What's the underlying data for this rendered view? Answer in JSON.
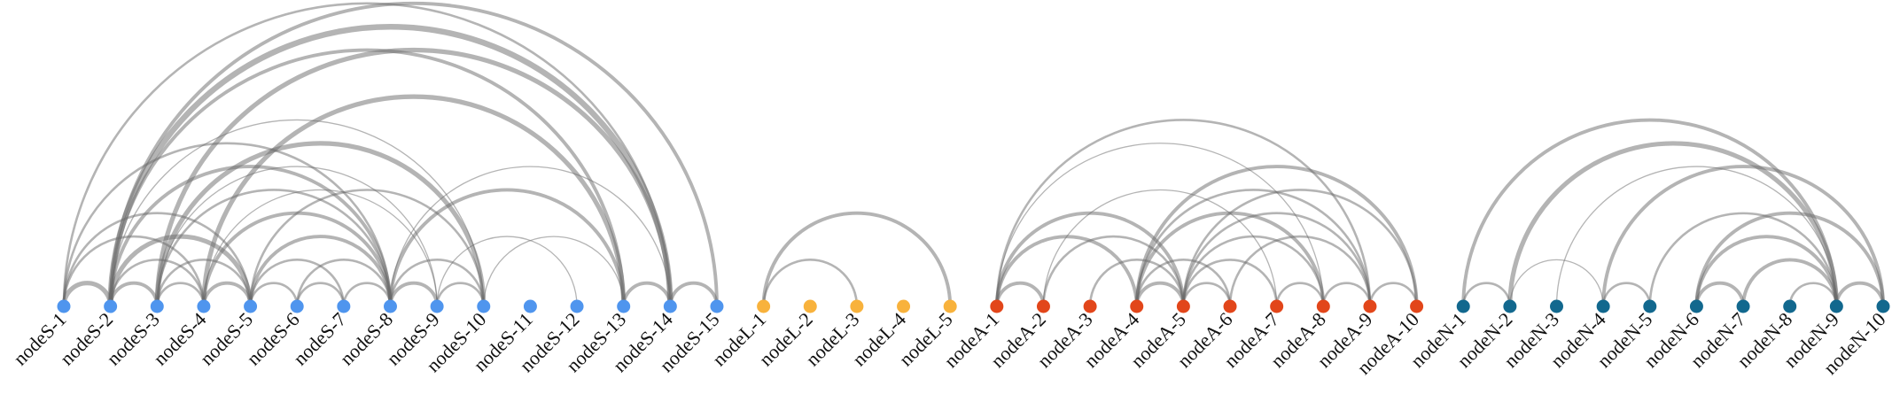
{
  "groups": [
    {
      "color": "#4f95ee",
      "nodes": [
        "nodeS-1",
        "nodeS-2",
        "nodeS-3",
        "nodeS-4",
        "nodeS-5",
        "nodeS-6",
        "nodeS-7",
        "nodeS-8",
        "nodeS-9",
        "nodeS-10",
        "nodeS-11",
        "nodeS-12",
        "nodeS-13",
        "nodeS-14",
        "nodeS-15"
      ]
    },
    {
      "color": "#f8b23c",
      "nodes": [
        "nodeL-1",
        "nodeL-2",
        "nodeL-3",
        "nodeL-4",
        "nodeL-5"
      ]
    },
    {
      "color": "#e2461a",
      "nodes": [
        "nodeA-1",
        "nodeA-2",
        "nodeA-3",
        "nodeA-4",
        "nodeA-5",
        "nodeA-6",
        "nodeA-7",
        "nodeA-8",
        "nodeA-9",
        "nodeA-10"
      ]
    },
    {
      "color": "#12688e",
      "nodes": [
        "nodeN-1",
        "nodeN-2",
        "nodeN-3",
        "nodeN-4",
        "nodeN-5",
        "nodeN-6",
        "nodeN-7",
        "nodeN-8",
        "nodeN-9",
        "nodeN-10"
      ]
    }
  ],
  "links": [
    [
      0,
      1,
      4
    ],
    [
      0,
      3,
      2
    ],
    [
      0,
      4,
      2
    ],
    [
      0,
      7,
      2
    ],
    [
      0,
      13,
      2
    ],
    [
      1,
      2,
      3
    ],
    [
      1,
      3,
      2
    ],
    [
      1,
      4,
      4
    ],
    [
      1,
      7,
      3
    ],
    [
      1,
      9,
      1
    ],
    [
      1,
      12,
      3
    ],
    [
      1,
      13,
      5
    ],
    [
      1,
      14,
      3
    ],
    [
      2,
      3,
      2
    ],
    [
      2,
      4,
      2
    ],
    [
      2,
      7,
      2
    ],
    [
      2,
      8,
      1
    ],
    [
      2,
      13,
      4
    ],
    [
      2,
      9,
      4
    ],
    [
      3,
      4,
      3
    ],
    [
      3,
      7,
      3
    ],
    [
      3,
      12,
      4
    ],
    [
      3,
      8,
      1
    ],
    [
      4,
      5,
      2
    ],
    [
      4,
      6,
      2
    ],
    [
      4,
      7,
      3
    ],
    [
      4,
      9,
      2
    ],
    [
      5,
      6,
      2
    ],
    [
      5,
      7,
      2
    ],
    [
      6,
      7,
      2
    ],
    [
      7,
      8,
      3
    ],
    [
      7,
      9,
      2
    ],
    [
      7,
      12,
      3
    ],
    [
      7,
      13,
      1
    ],
    [
      8,
      9,
      2
    ],
    [
      8,
      11,
      1
    ],
    [
      9,
      12,
      1
    ],
    [
      12,
      13,
      3
    ],
    [
      13,
      14,
      3
    ],
    [
      15,
      17,
      2
    ],
    [
      15,
      19,
      3
    ],
    [
      20,
      21,
      3
    ],
    [
      20,
      23,
      3
    ],
    [
      20,
      24,
      3
    ],
    [
      20,
      27,
      1
    ],
    [
      20,
      28,
      2
    ],
    [
      21,
      24,
      2
    ],
    [
      22,
      24,
      2
    ],
    [
      23,
      24,
      3
    ],
    [
      23,
      25,
      2
    ],
    [
      23,
      27,
      3
    ],
    [
      23,
      28,
      2
    ],
    [
      23,
      29,
      3
    ],
    [
      24,
      25,
      2
    ],
    [
      24,
      26,
      2
    ],
    [
      24,
      27,
      2
    ],
    [
      24,
      28,
      2
    ],
    [
      24,
      29,
      2
    ],
    [
      25,
      28,
      2
    ],
    [
      26,
      27,
      2
    ],
    [
      27,
      28,
      2
    ],
    [
      28,
      29,
      2
    ],
    [
      21,
      26,
      1
    ],
    [
      30,
      31,
      2
    ],
    [
      30,
      38,
      3
    ],
    [
      31,
      38,
      4
    ],
    [
      31,
      33,
      1
    ],
    [
      32,
      38,
      1
    ],
    [
      33,
      34,
      2
    ],
    [
      33,
      39,
      3
    ],
    [
      34,
      38,
      2
    ],
    [
      35,
      36,
      3
    ],
    [
      35,
      38,
      3
    ],
    [
      35,
      39,
      3
    ],
    [
      36,
      38,
      3
    ],
    [
      37,
      38,
      2
    ],
    [
      38,
      39,
      3
    ]
  ]
}
